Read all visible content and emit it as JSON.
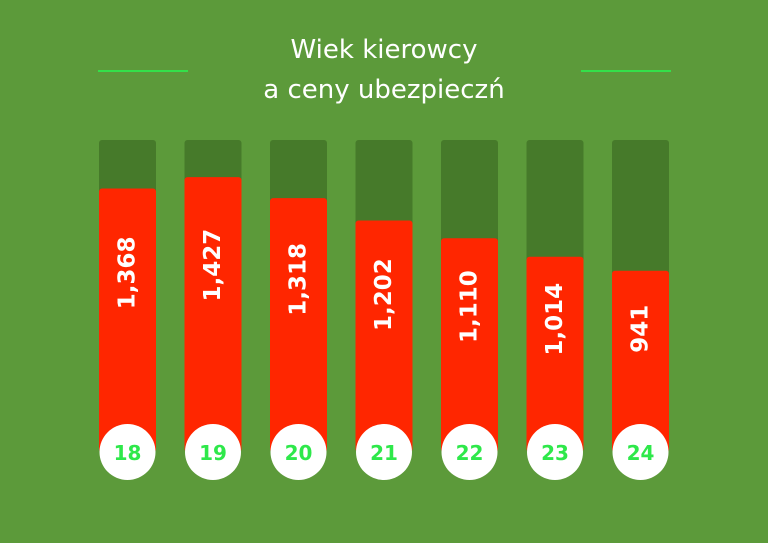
{
  "chart_data": {
    "type": "bar",
    "title_line1": "Wiek kierowcy",
    "title_line2": "a ceny ubezpieczń",
    "categories": [
      "18",
      "19",
      "20",
      "21",
      "22",
      "23",
      "24"
    ],
    "values": [
      1368,
      1427,
      1318,
      1202,
      1110,
      1014,
      941
    ],
    "value_labels": [
      "1,368",
      "1,427",
      "1,318",
      "1,202",
      "1,110",
      "1,014",
      "941"
    ],
    "xlabel": "",
    "ylabel": "",
    "ylim": [
      0,
      1620
    ],
    "grid": false,
    "legend": "none"
  },
  "colors": {
    "background": "#5c9a3a",
    "track": "#467a2a",
    "bar": "#ff2600",
    "category_text": "#2ee84a",
    "circle": "#ffffff",
    "accent_line": "#34e04a"
  }
}
